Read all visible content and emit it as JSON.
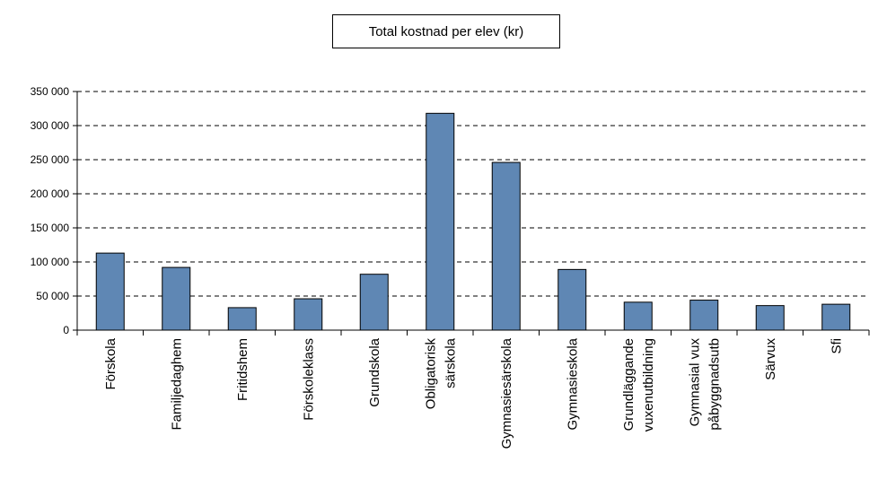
{
  "chart_data": {
    "type": "bar",
    "title": "Total kostnad per elev (kr)",
    "xlabel": "",
    "ylabel": "",
    "ylim": [
      0,
      350000
    ],
    "yticks": [
      0,
      50000,
      100000,
      150000,
      200000,
      250000,
      300000,
      350000
    ],
    "ytick_labels": [
      "0",
      "50 000",
      "100 000",
      "150 000",
      "200 000",
      "250 000",
      "300 000",
      "350 000"
    ],
    "grid": true,
    "grid_style": "dashed",
    "legend": "none",
    "bar_color": "#5f87b4",
    "categories": [
      [
        "Förskola"
      ],
      [
        "Familjedaghem"
      ],
      [
        "Fritidshem"
      ],
      [
        "Förskoleklass"
      ],
      [
        "Grundskola"
      ],
      [
        "Obligatorisk",
        "särskola"
      ],
      [
        "Gymnasiesärskola"
      ],
      [
        "Gymnasieskola"
      ],
      [
        "Grundläggande",
        "vuxenutbildning"
      ],
      [
        "Gymnasial vux",
        "påbyggnadsutb"
      ],
      [
        "Särvux"
      ],
      [
        "Sfi"
      ]
    ],
    "values": [
      113000,
      92000,
      33000,
      46000,
      82000,
      318000,
      246000,
      89000,
      41000,
      44000,
      36000,
      38000
    ]
  }
}
